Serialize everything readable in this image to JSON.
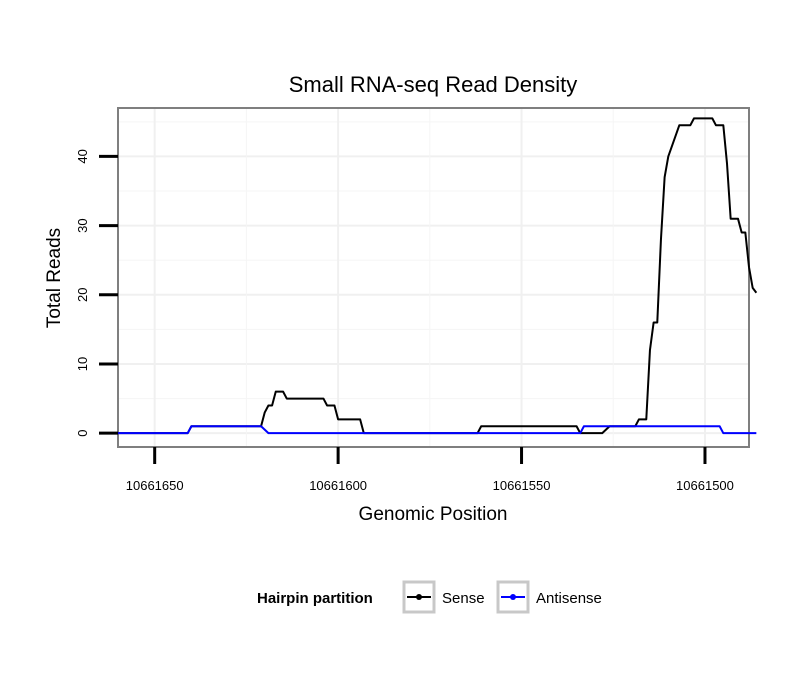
{
  "chart_data": {
    "type": "line",
    "title": "Small RNA-seq Read Density",
    "xlabel": "Genomic Position",
    "ylabel": "Total Reads",
    "x_reversed": true,
    "xlim": [
      10661660,
      10661488
    ],
    "ylim": [
      -2,
      47
    ],
    "x_ticks": [
      10661650,
      10661600,
      10661550,
      10661500
    ],
    "x_tick_labels": [
      "10661650",
      "10661600",
      "10661550",
      "10661500"
    ],
    "y_ticks": [
      0,
      10,
      20,
      30,
      40
    ],
    "y_tick_labels": [
      "0",
      "10",
      "20",
      "30",
      "40"
    ],
    "legend": {
      "title": "Hairpin partition",
      "position": "bottom",
      "entries": [
        "Sense",
        "Antisense"
      ]
    },
    "series": [
      {
        "name": "Sense",
        "color": "#000000",
        "points": [
          [
            10661661,
            0
          ],
          [
            10661641,
            0
          ],
          [
            10661640,
            1
          ],
          [
            10661621,
            1
          ],
          [
            10661620,
            3
          ],
          [
            10661619,
            4
          ],
          [
            10661618,
            4
          ],
          [
            10661617,
            6
          ],
          [
            10661615,
            6
          ],
          [
            10661614,
            5
          ],
          [
            10661604,
            5
          ],
          [
            10661603,
            4
          ],
          [
            10661601,
            4
          ],
          [
            10661600,
            2
          ],
          [
            10661594,
            2
          ],
          [
            10661593,
            0
          ],
          [
            10661562,
            0
          ],
          [
            10661561,
            1
          ],
          [
            10661535,
            1
          ],
          [
            10661534,
            0
          ],
          [
            10661528,
            0
          ],
          [
            10661526,
            1
          ],
          [
            10661519,
            1
          ],
          [
            10661518,
            2
          ],
          [
            10661516,
            2
          ],
          [
            10661515,
            12
          ],
          [
            10661514,
            16
          ],
          [
            10661513,
            16
          ],
          [
            10661512,
            28
          ],
          [
            10661511,
            37
          ],
          [
            10661510,
            40
          ],
          [
            10661508,
            43
          ],
          [
            10661507,
            44.5
          ],
          [
            10661504,
            44.5
          ],
          [
            10661503,
            45.5
          ],
          [
            10661498,
            45.5
          ],
          [
            10661497,
            44.5
          ],
          [
            10661495,
            44.5
          ],
          [
            10661494,
            39
          ],
          [
            10661493,
            31
          ],
          [
            10661491,
            31
          ],
          [
            10661490,
            29
          ],
          [
            10661489,
            29
          ],
          [
            10661488,
            24
          ],
          [
            10661487,
            21
          ],
          [
            10661486,
            20.3
          ]
        ]
      },
      {
        "name": "Antisense",
        "color": "#0000ff",
        "points": [
          [
            10661661,
            0
          ],
          [
            10661641,
            0
          ],
          [
            10661640,
            1
          ],
          [
            10661621,
            1
          ],
          [
            10661619,
            0
          ],
          [
            10661534,
            0
          ],
          [
            10661533,
            1
          ],
          [
            10661496,
            1
          ],
          [
            10661495,
            0
          ],
          [
            10661486,
            0
          ]
        ]
      }
    ]
  }
}
